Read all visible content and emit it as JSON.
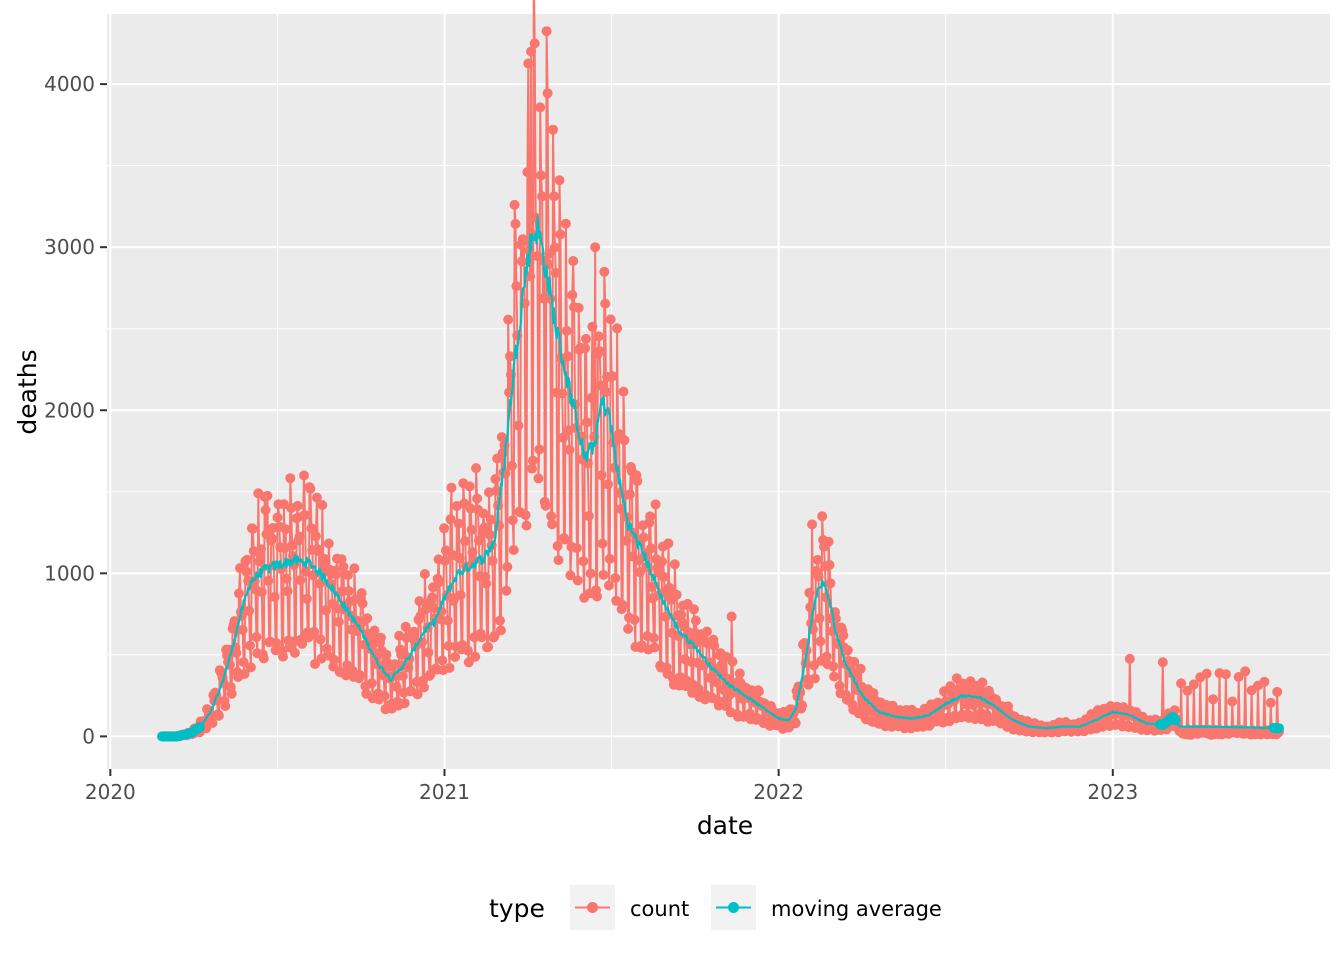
{
  "chart_data": {
    "type": "line",
    "title": "",
    "xlabel": "date",
    "ylabel": "deaths",
    "xlim": [
      2019.99,
      2023.65
    ],
    "ylim": [
      -200,
      4430
    ],
    "x_ticks": [
      {
        "value": 2020,
        "label": "2020"
      },
      {
        "value": 2021,
        "label": "2021"
      },
      {
        "value": 2022,
        "label": "2022"
      },
      {
        "value": 2023,
        "label": "2023"
      }
    ],
    "y_ticks": [
      {
        "value": 0,
        "label": "0"
      },
      {
        "value": 1000,
        "label": "1000"
      },
      {
        "value": 2000,
        "label": "2000"
      },
      {
        "value": 3000,
        "label": "3000"
      },
      {
        "value": 4000,
        "label": "4000"
      }
    ],
    "legend": {
      "title": "type",
      "position": "bottom",
      "entries": [
        {
          "label": "count",
          "color": "#F8766D"
        },
        {
          "label": "moving average",
          "color": "#00BFC4"
        }
      ]
    },
    "colors": {
      "panel": "#EBEBEB",
      "grid_major": "#FFFFFF",
      "count": "#F8766D",
      "moving_average": "#00BFC4"
    },
    "series": [
      {
        "name": "moving average",
        "color": "#00BFC4",
        "anchors": [
          [
            2020.15,
            0
          ],
          [
            2020.2,
            0
          ],
          [
            2020.24,
            20
          ],
          [
            2020.27,
            60
          ],
          [
            2020.3,
            150
          ],
          [
            2020.33,
            300
          ],
          [
            2020.36,
            500
          ],
          [
            2020.39,
            750
          ],
          [
            2020.42,
            950
          ],
          [
            2020.46,
            1020
          ],
          [
            2020.5,
            1050
          ],
          [
            2020.55,
            1080
          ],
          [
            2020.6,
            1060
          ],
          [
            2020.65,
            950
          ],
          [
            2020.7,
            800
          ],
          [
            2020.75,
            650
          ],
          [
            2020.8,
            450
          ],
          [
            2020.84,
            350
          ],
          [
            2020.87,
            420
          ],
          [
            2020.9,
            500
          ],
          [
            2020.94,
            650
          ],
          [
            2020.97,
            700
          ],
          [
            2021.0,
            850
          ],
          [
            2021.04,
            1000
          ],
          [
            2021.08,
            1050
          ],
          [
            2021.12,
            1100
          ],
          [
            2021.15,
            1200
          ],
          [
            2021.18,
            1700
          ],
          [
            2021.21,
            2300
          ],
          [
            2021.24,
            2800
          ],
          [
            2021.26,
            3050
          ],
          [
            2021.28,
            3120
          ],
          [
            2021.3,
            2900
          ],
          [
            2021.33,
            2550
          ],
          [
            2021.36,
            2250
          ],
          [
            2021.4,
            1900
          ],
          [
            2021.42,
            1700
          ],
          [
            2021.45,
            1800
          ],
          [
            2021.47,
            2050
          ],
          [
            2021.49,
            2000
          ],
          [
            2021.52,
            1600
          ],
          [
            2021.55,
            1300
          ],
          [
            2021.6,
            1100
          ],
          [
            2021.65,
            850
          ],
          [
            2021.7,
            650
          ],
          [
            2021.75,
            550
          ],
          [
            2021.8,
            420
          ],
          [
            2021.85,
            320
          ],
          [
            2021.9,
            250
          ],
          [
            2021.95,
            180
          ],
          [
            2022.0,
            110
          ],
          [
            2022.03,
            100
          ],
          [
            2022.05,
            160
          ],
          [
            2022.07,
            350
          ],
          [
            2022.09,
            600
          ],
          [
            2022.11,
            850
          ],
          [
            2022.13,
            950
          ],
          [
            2022.15,
            850
          ],
          [
            2022.17,
            650
          ],
          [
            2022.2,
            450
          ],
          [
            2022.25,
            250
          ],
          [
            2022.3,
            150
          ],
          [
            2022.35,
            120
          ],
          [
            2022.4,
            110
          ],
          [
            2022.45,
            130
          ],
          [
            2022.5,
            200
          ],
          [
            2022.55,
            250
          ],
          [
            2022.6,
            240
          ],
          [
            2022.65,
            180
          ],
          [
            2022.7,
            100
          ],
          [
            2022.75,
            60
          ],
          [
            2022.8,
            50
          ],
          [
            2022.85,
            60
          ],
          [
            2022.9,
            60
          ],
          [
            2022.95,
            100
          ],
          [
            2023.0,
            150
          ],
          [
            2023.05,
            130
          ],
          [
            2023.1,
            80
          ],
          [
            2023.15,
            70
          ],
          [
            2023.18,
            120
          ],
          [
            2023.2,
            60
          ],
          [
            2023.3,
            60
          ],
          [
            2023.4,
            55
          ],
          [
            2023.5,
            50
          ]
        ]
      },
      {
        "name": "count",
        "color": "#F8766D",
        "pattern": "daily counts oscillating weekly around the moving average (weekday reporting spikes, weekend dips); trails off toward weekly reporting after early 2023",
        "peaks": [
          {
            "x": 2020.58,
            "y": 1600
          },
          {
            "x": 2020.47,
            "y": 1475
          },
          {
            "x": 2021.02,
            "y": 1525
          },
          {
            "x": 2021.27,
            "y": 4250
          },
          {
            "x": 2021.26,
            "y": 4200
          },
          {
            "x": 2021.45,
            "y": 3000
          },
          {
            "x": 2021.86,
            "y": 735
          },
          {
            "x": 2022.1,
            "y": 1300
          },
          {
            "x": 2023.05,
            "y": 475
          },
          {
            "x": 2023.15,
            "y": 455
          }
        ]
      }
    ]
  }
}
